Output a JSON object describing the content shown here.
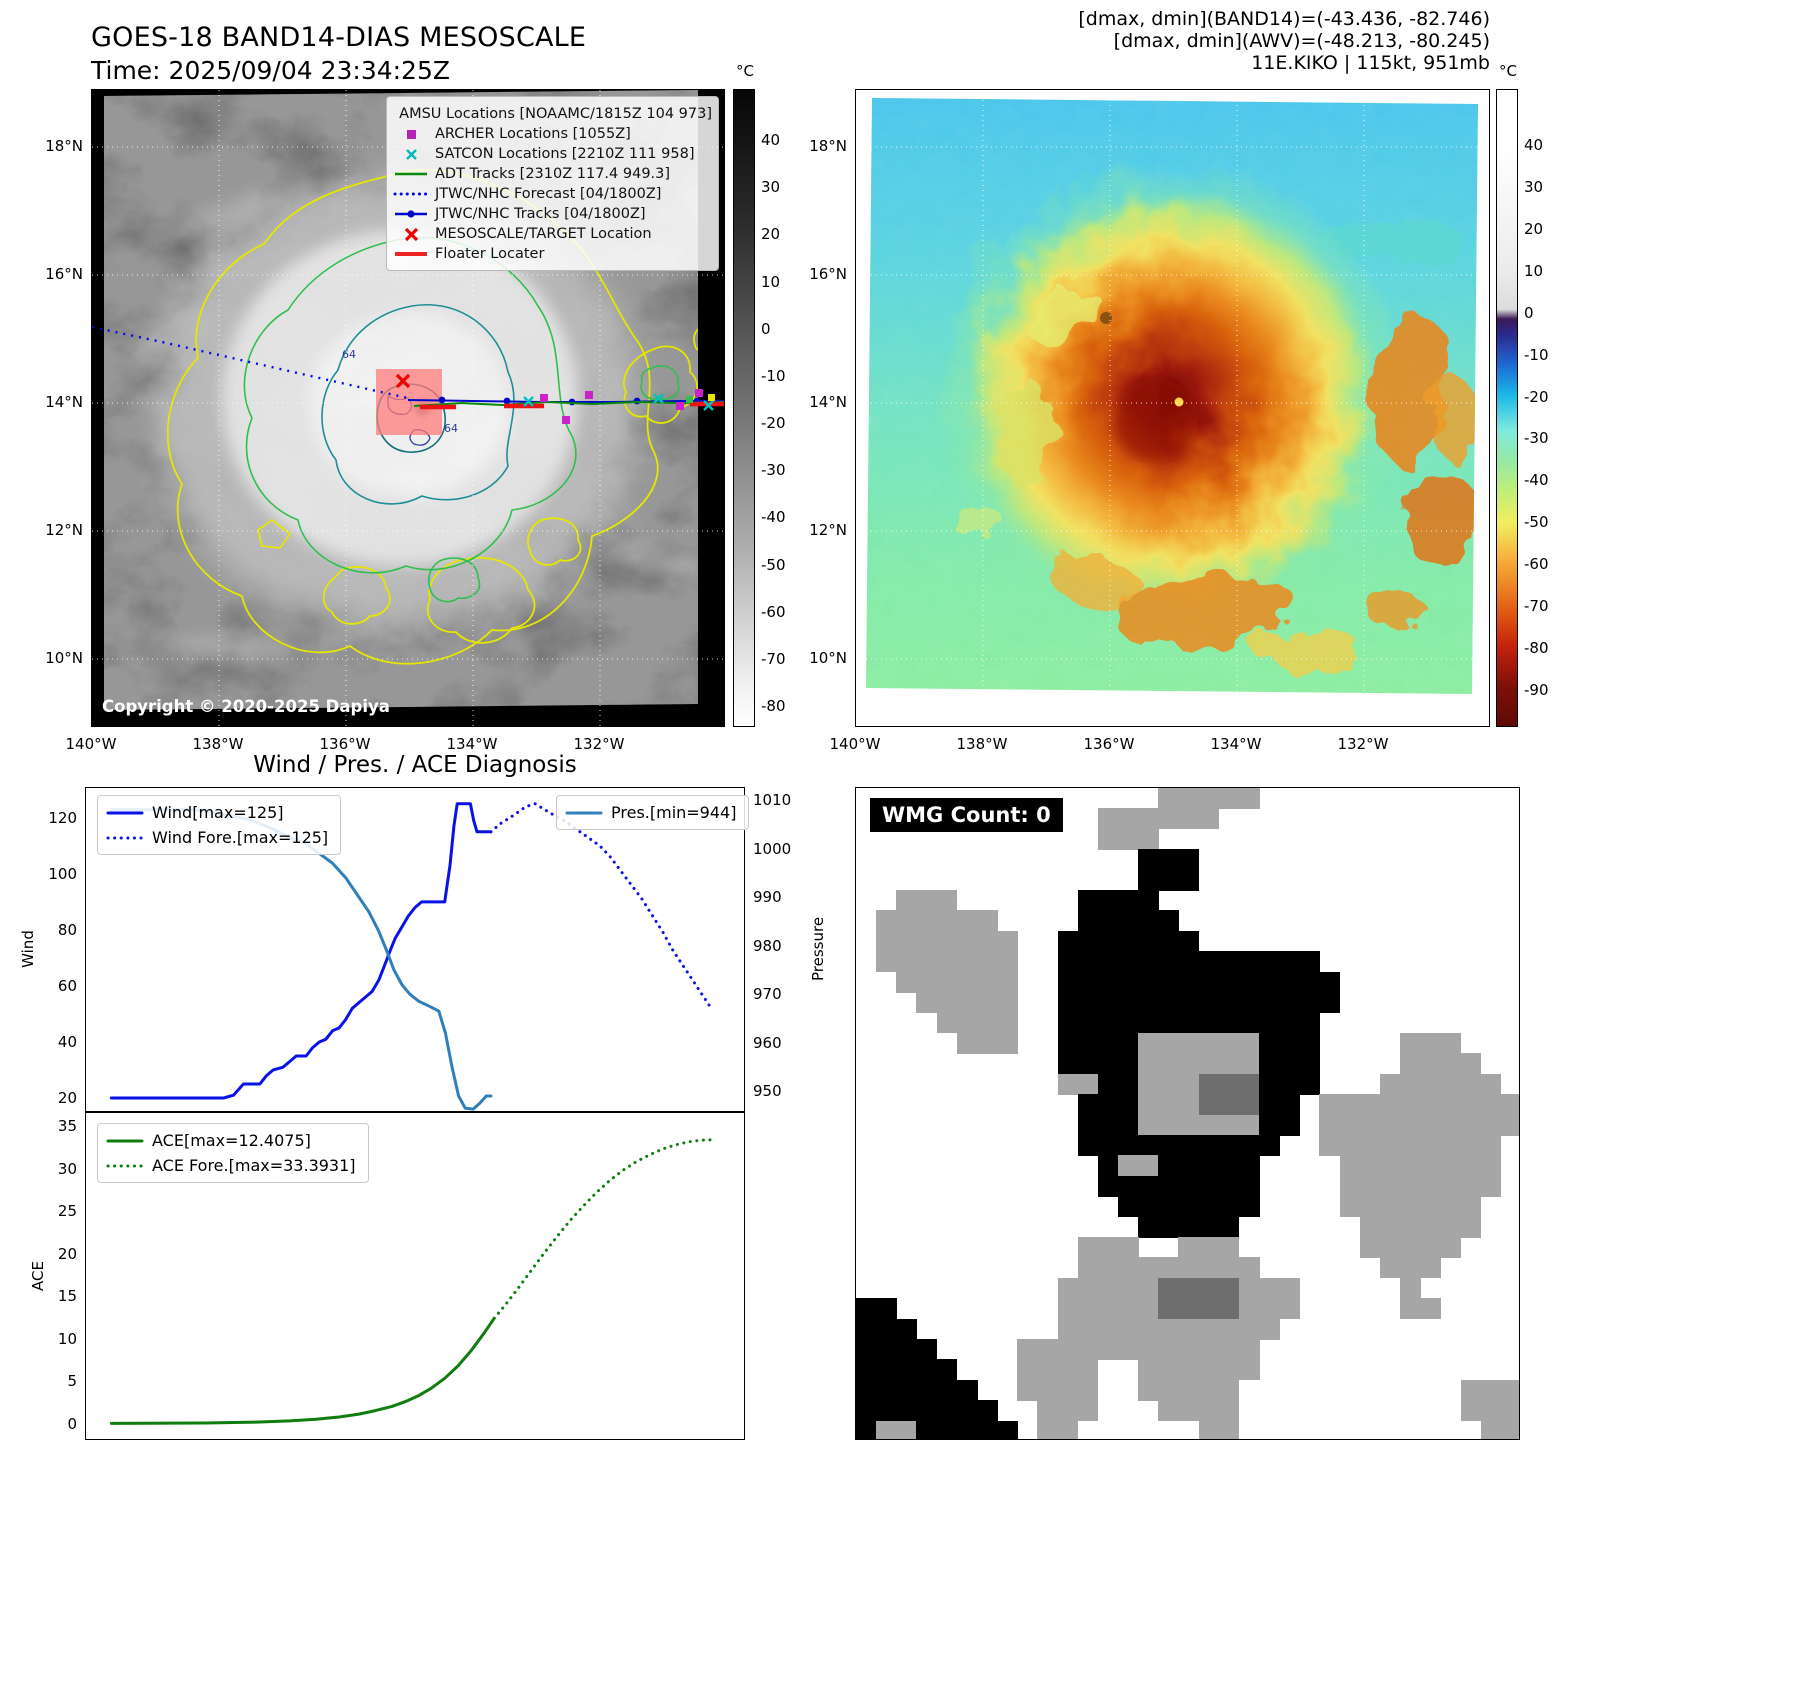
{
  "band14": {
    "title": "GOES-18 BAND14-DIAS MESOSCALE",
    "time_line": "Time: 2025/09/04 23:34:25Z",
    "copyright": "Copyright © 2020-2025 Dapiya",
    "colorbar_unit": "°C",
    "colorbar_ticks": [
      40,
      30,
      20,
      10,
      0,
      -10,
      -20,
      -30,
      -40,
      -50,
      -60,
      -70,
      -80
    ],
    "lat_labels": [
      "18°N",
      "16°N",
      "14°N",
      "12°N",
      "10°N"
    ],
    "lon_labels": [
      "140°W",
      "138°W",
      "136°W",
      "134°W",
      "132°W"
    ],
    "contour_labels": [
      "64",
      "64"
    ],
    "legend": [
      {
        "marker": "square",
        "color": "#cc33cc",
        "label": "AMSU Locations [NOAAMC/1815Z 104 973]"
      },
      {
        "marker": "square",
        "color": "#b522b5",
        "label": "ARCHER Locations [1055Z]"
      },
      {
        "marker": "x",
        "color": "#00b8b8",
        "label": "SATCON Locations [2210Z 111 958]"
      },
      {
        "marker": "line",
        "color": "#0a8a0a",
        "label": "ADT Tracks [2310Z 117.4 949.3]"
      },
      {
        "marker": "dotted",
        "color": "#0008ee",
        "label": "JTWC/NHC Forecast [04/1800Z]"
      },
      {
        "marker": "line-dot",
        "color": "#0008cc",
        "label": "JTWC/NHC Tracks [04/1800Z]"
      },
      {
        "marker": "x-bold",
        "color": "#ee0000",
        "label": "MESOSCALE/TARGET Location"
      },
      {
        "marker": "line-thick",
        "color": "#ee2222",
        "label": "Floater Locater"
      }
    ]
  },
  "awv": {
    "header_lines": [
      "[dmax, dmin](BAND14)=(-43.436, -82.746)",
      "[dmax, dmin](AWV)=(-48.213, -80.245)",
      "11E.KIKO | 115kt, 951mb"
    ],
    "colorbar_unit": "°C",
    "colorbar_ticks": [
      40,
      30,
      20,
      10,
      0,
      -10,
      -20,
      -30,
      -40,
      -50,
      -60,
      -70,
      -80,
      -90
    ],
    "lat_labels": [
      "18°N",
      "16°N",
      "14°N",
      "12°N",
      "10°N"
    ],
    "lon_labels": [
      "140°W",
      "138°W",
      "136°W",
      "134°W",
      "132°W"
    ]
  },
  "wmg": {
    "count_label": "WMG Count: 0",
    "palette": {
      ".": "#ffffff",
      "G": "#a6a6a6",
      "D": "#6e6e6e",
      "K": "#000000"
    },
    "grid": [
      "...............GGGGG.............",
      "............GGGGGG...............",
      "............GGG..................",
      "..............KKK................",
      "..............KKK................",
      "..GGG......KKKK..................",
      ".GGGGGG....KKKKK.................",
      ".GGGGGGG..KKKKKKK................",
      ".GGGGGGG..KKKKKKKKKKKKK..........",
      "..GGGGGG..KKKKKKKKKKKKKK.........",
      "...GGGGG..KKKKKKKKKKKKKK.........",
      "....GGGG..KKKKKKKKKKKKK..........",
      ".....GGG..KKKKGGGGGGKKK....GGG...",
      "..........KKKKGGGGGGKKK....GGGG..",
      "..........GGKKGGGDDDKKK...GGGGGG.",
      "...........KKKGGGDDDKK.GGGGGGGGGG",
      "...........KKKGGGGGGKK.GGGGGGGGGG",
      "...........KKKKKKKKKK..GGGGGGGGG.",
      "............KGGKKKKK....GGGGGGGG.",
      "............KKKKKKKK....GGGGGGGG.",
      ".............KKKKKKK....GGGGGGG..",
      "..............KKKKK......GGGGGG..",
      "...........GGG..GGG......GGGGG...",
      "...........GGGGGGGGG......GGG....",
      "..........GGGGGDDDDGGG.....G.....",
      "KK........GGGGGDDDDGGG.....GG....",
      "KKK.......GGGGGGGGGGG............",
      "KKKK....GGGGGGGGGGGG.............",
      "KKKKK...GGGG..GGGGGG.............",
      "KKKKKK..GGGG..GGGGG...........GGG",
      "KKKKKKK..GGG...GGGG...........GGG",
      "KGGKKKKK.GG......GG............GG"
    ]
  },
  "chart_data": [
    {
      "type": "line",
      "title": "Wind / Pres. / ACE Diagnosis",
      "x_unit": "percent-of-time-axis",
      "left_axis": {
        "label": "Wind",
        "range": [
          15,
          131
        ],
        "ticks": [
          20,
          40,
          60,
          80,
          100,
          120
        ]
      },
      "right_axis": {
        "label": "Pressure",
        "range": [
          945.7,
          1012.7
        ],
        "ticks": [
          950,
          960,
          970,
          980,
          990,
          1000,
          1010
        ]
      },
      "series": [
        {
          "name": "Wind[max=125]",
          "style": "solid",
          "color": "#0a12e8",
          "axis": "left",
          "points": [
            [
              4,
              20
            ],
            [
              21,
              20
            ],
            [
              22.5,
              21
            ],
            [
              24,
              25
            ],
            [
              26.5,
              25
            ],
            [
              27.5,
              28
            ],
            [
              28.5,
              30
            ],
            [
              30,
              31
            ],
            [
              31,
              33
            ],
            [
              32,
              35
            ],
            [
              33.5,
              35
            ],
            [
              34.5,
              38
            ],
            [
              35.5,
              40
            ],
            [
              36.5,
              41
            ],
            [
              37.5,
              44
            ],
            [
              38.5,
              45
            ],
            [
              39.5,
              48
            ],
            [
              40.5,
              52
            ],
            [
              42,
              55
            ],
            [
              43.5,
              58
            ],
            [
              44.5,
              62
            ],
            [
              45.5,
              68
            ],
            [
              46.3,
              73
            ],
            [
              47,
              77
            ],
            [
              48,
              81
            ],
            [
              49,
              85
            ],
            [
              50,
              88
            ],
            [
              51,
              90
            ],
            [
              54.5,
              90
            ],
            [
              55.3,
              103
            ],
            [
              55.9,
              117
            ],
            [
              56.4,
              125
            ],
            [
              58.4,
              125
            ],
            [
              58.9,
              119
            ],
            [
              59.4,
              115
            ],
            [
              61.5,
              115
            ]
          ]
        },
        {
          "name": "Wind Fore.[max=125]",
          "style": "dotted",
          "color": "#0a12e8",
          "axis": "left",
          "points": [
            [
              61.5,
              115
            ],
            [
              63,
              118
            ],
            [
              65,
              121
            ],
            [
              66.8,
              124
            ],
            [
              68.2,
              125
            ],
            [
              69.6,
              123
            ],
            [
              71,
              121
            ],
            [
              72.6,
              119
            ],
            [
              74.4,
              116
            ],
            [
              76.2,
              113
            ],
            [
              78,
              110
            ],
            [
              79.6,
              106
            ],
            [
              81.2,
              101
            ],
            [
              82.8,
              96
            ],
            [
              84.4,
              91
            ],
            [
              86,
              85
            ],
            [
              87.6,
              79
            ],
            [
              89,
              73
            ],
            [
              90.4,
              68
            ],
            [
              91.8,
              63
            ],
            [
              93.2,
              58
            ],
            [
              94.6,
              53
            ]
          ]
        },
        {
          "name": "Pres.[min=944]",
          "style": "solid",
          "color": "#2e7fba",
          "axis": "right",
          "points": [
            [
              4,
              1008
            ],
            [
              17,
              1008
            ],
            [
              21,
              1007
            ],
            [
              25,
              1006
            ],
            [
              28.5,
              1004
            ],
            [
              31.5,
              1002
            ],
            [
              33.5,
              1001
            ],
            [
              35.5,
              999
            ],
            [
              37.5,
              997
            ],
            [
              39.5,
              994
            ],
            [
              41.5,
              990
            ],
            [
              43,
              987
            ],
            [
              44.5,
              983
            ],
            [
              45.7,
              979
            ],
            [
              46.8,
              975
            ],
            [
              48,
              972
            ],
            [
              49.2,
              970
            ],
            [
              50.6,
              968.5
            ],
            [
              52.2,
              967.5
            ],
            [
              53.6,
              966.5
            ],
            [
              54.6,
              962
            ],
            [
              55.6,
              955
            ],
            [
              56.6,
              949
            ],
            [
              57.6,
              946.5
            ],
            [
              58.8,
              946.3
            ],
            [
              59.8,
              947.5
            ],
            [
              60.8,
              949
            ],
            [
              61.5,
              949
            ]
          ]
        }
      ]
    },
    {
      "type": "line",
      "left_axis": {
        "label": "ACE",
        "range": [
          -1.9,
          36.3
        ],
        "ticks": [
          0,
          5,
          10,
          15,
          20,
          25,
          30,
          35
        ]
      },
      "series": [
        {
          "name": "ACE[max=12.4075]",
          "style": "solid",
          "color": "#0e7d0e",
          "axis": "left",
          "points": [
            [
              4,
              0.05
            ],
            [
              18,
              0.1
            ],
            [
              26,
              0.2
            ],
            [
              31,
              0.35
            ],
            [
              35,
              0.55
            ],
            [
              38.5,
              0.8
            ],
            [
              41.5,
              1.15
            ],
            [
              44,
              1.55
            ],
            [
              46.5,
              2.05
            ],
            [
              48.5,
              2.6
            ],
            [
              50.5,
              3.3
            ],
            [
              52.5,
              4.2
            ],
            [
              54.5,
              5.35
            ],
            [
              56.5,
              6.8
            ],
            [
              58.5,
              8.6
            ],
            [
              60.5,
              10.7
            ],
            [
              62,
              12.41
            ]
          ]
        },
        {
          "name": "ACE Fore.[max=33.3931]",
          "style": "dotted",
          "color": "#0e7d0e",
          "axis": "left",
          "points": [
            [
              62,
              12.41
            ],
            [
              63.5,
              13.8
            ],
            [
              65.5,
              15.8
            ],
            [
              67.5,
              17.9
            ],
            [
              69.5,
              20
            ],
            [
              71.5,
              22
            ],
            [
              73.5,
              23.9
            ],
            [
              75.5,
              25.6
            ],
            [
              77.5,
              27.2
            ],
            [
              79.5,
              28.6
            ],
            [
              81.5,
              29.8
            ],
            [
              83.5,
              30.8
            ],
            [
              85.5,
              31.6
            ],
            [
              87.5,
              32.3
            ],
            [
              89.5,
              32.8
            ],
            [
              91.5,
              33.15
            ],
            [
              93.5,
              33.35
            ],
            [
              95,
              33.39
            ]
          ]
        }
      ]
    }
  ]
}
